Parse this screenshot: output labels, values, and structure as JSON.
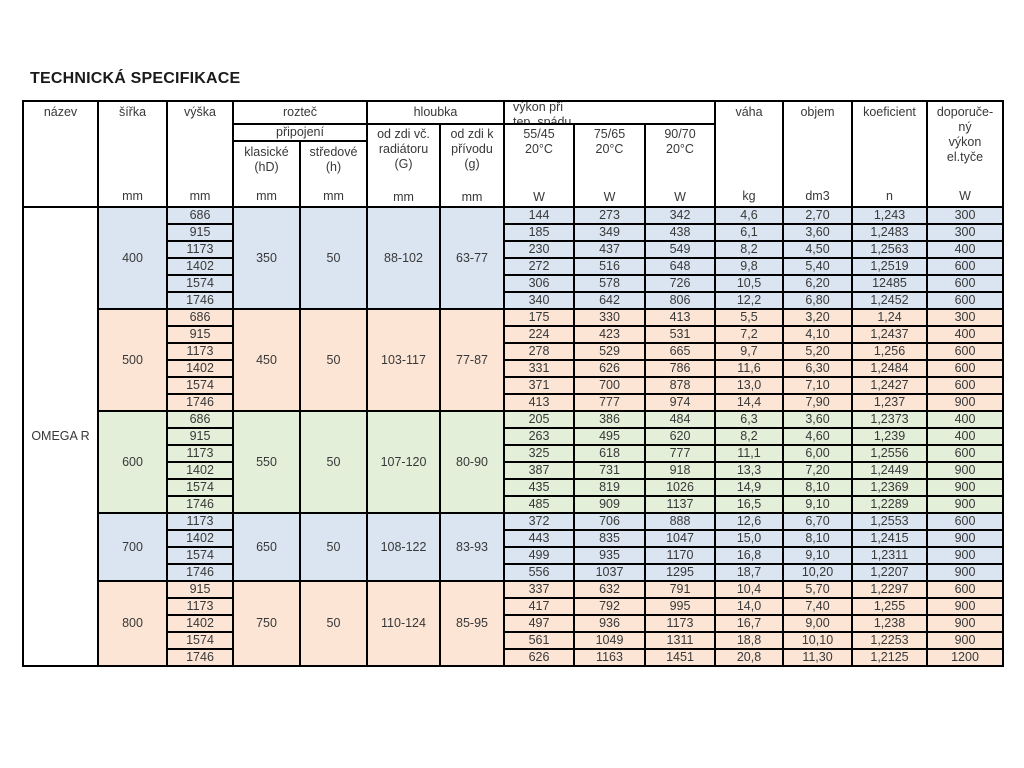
{
  "title": "TECHNICKÁ SPECIFIKACE",
  "table": {
    "product": "OMEGA R",
    "colors": {
      "blue": "#dbe5f1",
      "peach": "#fce5d5",
      "green": "#e3efd9",
      "white": "#ffffff"
    },
    "header": {
      "nazev": "název",
      "sirka": "šířka",
      "vyska": "výška",
      "roztec": "rozteč",
      "pripojeni": "připojení",
      "klasicke_1": "klasické",
      "klasicke_2": "(hD)",
      "stredove_1": "středové",
      "stredove_2": "(h)",
      "hloubka": "hloubka",
      "od_zdi_vc_1": "od zdi vč.",
      "od_zdi_vc_2": "radiátoru",
      "od_zdi_vc_3": "(G)",
      "od_zdi_k_1": "od zdi k",
      "od_zdi_k_2": "přívodu",
      "od_zdi_k_3": "(g)",
      "vykon_1": "výkon při",
      "vykon_2": "tep. spádu",
      "temp_55_45_1": "55/45",
      "temp_55_45_2": "20°C",
      "temp_75_65_1": "75/65",
      "temp_75_65_2": "20°C",
      "temp_90_70_1": "90/70",
      "temp_90_70_2": "20°C",
      "vaha": "váha",
      "objem": "objem",
      "koeficient": "koeficient",
      "doporuceny_1": "doporuče-",
      "doporuceny_2": "ný",
      "doporuceny_3": "výkon",
      "doporuceny_4": "el.tyče",
      "unit_mm": "mm",
      "unit_w": "W",
      "unit_kg": "kg",
      "unit_dm3": "dm3",
      "unit_n": "n"
    },
    "groups": [
      {
        "width": "400",
        "color": "blue",
        "spacing_classic": "350",
        "spacing_center": "50",
        "depth_radiator": "88-102",
        "depth_supply": "63-77",
        "rows": [
          [
            "686",
            "144",
            "273",
            "342",
            "4,6",
            "2,70",
            "1,243",
            "300"
          ],
          [
            "915",
            "185",
            "349",
            "438",
            "6,1",
            "3,60",
            "1,2483",
            "300"
          ],
          [
            "1173",
            "230",
            "437",
            "549",
            "8,2",
            "4,50",
            "1,2563",
            "400"
          ],
          [
            "1402",
            "272",
            "516",
            "648",
            "9,8",
            "5,40",
            "1,2519",
            "600"
          ],
          [
            "1574",
            "306",
            "578",
            "726",
            "10,5",
            "6,20",
            "12485",
            "600"
          ],
          [
            "1746",
            "340",
            "642",
            "806",
            "12,2",
            "6,80",
            "1,2452",
            "600"
          ]
        ]
      },
      {
        "width": "500",
        "color": "peach",
        "spacing_classic": "450",
        "spacing_center": "50",
        "depth_radiator": "103-117",
        "depth_supply": "77-87",
        "rows": [
          [
            "686",
            "175",
            "330",
            "413",
            "5,5",
            "3,20",
            "1,24",
            "300"
          ],
          [
            "915",
            "224",
            "423",
            "531",
            "7,2",
            "4,10",
            "1,2437",
            "400"
          ],
          [
            "1173",
            "278",
            "529",
            "665",
            "9,7",
            "5,20",
            "1,256",
            "600"
          ],
          [
            "1402",
            "331",
            "626",
            "786",
            "11,6",
            "6,30",
            "1,2484",
            "600"
          ],
          [
            "1574",
            "371",
            "700",
            "878",
            "13,0",
            "7,10",
            "1,2427",
            "600"
          ],
          [
            "1746",
            "413",
            "777",
            "974",
            "14,4",
            "7,90",
            "1,237",
            "900"
          ]
        ]
      },
      {
        "width": "600",
        "color": "green",
        "spacing_classic": "550",
        "spacing_center": "50",
        "depth_radiator": "107-120",
        "depth_supply": "80-90",
        "rows": [
          [
            "686",
            "205",
            "386",
            "484",
            "6,3",
            "3,60",
            "1,2373",
            "400"
          ],
          [
            "915",
            "263",
            "495",
            "620",
            "8,2",
            "4,60",
            "1,239",
            "400"
          ],
          [
            "1173",
            "325",
            "618",
            "777",
            "11,1",
            "6,00",
            "1,2556",
            "600"
          ],
          [
            "1402",
            "387",
            "731",
            "918",
            "13,3",
            "7,20",
            "1,2449",
            "900"
          ],
          [
            "1574",
            "435",
            "819",
            "1026",
            "14,9",
            "8,10",
            "1,2369",
            "900"
          ],
          [
            "1746",
            "485",
            "909",
            "1137",
            "16,5",
            "9,10",
            "1,2289",
            "900"
          ]
        ]
      },
      {
        "width": "700",
        "color": "blue",
        "spacing_classic": "650",
        "spacing_center": "50",
        "depth_radiator": "108-122",
        "depth_supply": "83-93",
        "rows": [
          [
            "1173",
            "372",
            "706",
            "888",
            "12,6",
            "6,70",
            "1,2553",
            "600"
          ],
          [
            "1402",
            "443",
            "835",
            "1047",
            "15,0",
            "8,10",
            "1,2415",
            "900"
          ],
          [
            "1574",
            "499",
            "935",
            "1170",
            "16,8",
            "9,10",
            "1,2311",
            "900"
          ],
          [
            "1746",
            "556",
            "1037",
            "1295",
            "18,7",
            "10,20",
            "1,2207",
            "900"
          ]
        ]
      },
      {
        "width": "800",
        "color": "peach",
        "spacing_classic": "750",
        "spacing_center": "50",
        "depth_radiator": "110-124",
        "depth_supply": "85-95",
        "rows": [
          [
            "915",
            "337",
            "632",
            "791",
            "10,4",
            "5,70",
            "1,2297",
            "600"
          ],
          [
            "1173",
            "417",
            "792",
            "995",
            "14,0",
            "7,40",
            "1,255",
            "900"
          ],
          [
            "1402",
            "497",
            "936",
            "1173",
            "16,7",
            "9,00",
            "1,238",
            "900"
          ],
          [
            "1574",
            "561",
            "1049",
            "1311",
            "18,8",
            "10,10",
            "1,2253",
            "900"
          ],
          [
            "1746",
            "626",
            "1163",
            "1451",
            "20,8",
            "11,30",
            "1,2125",
            "1200"
          ]
        ]
      }
    ]
  }
}
